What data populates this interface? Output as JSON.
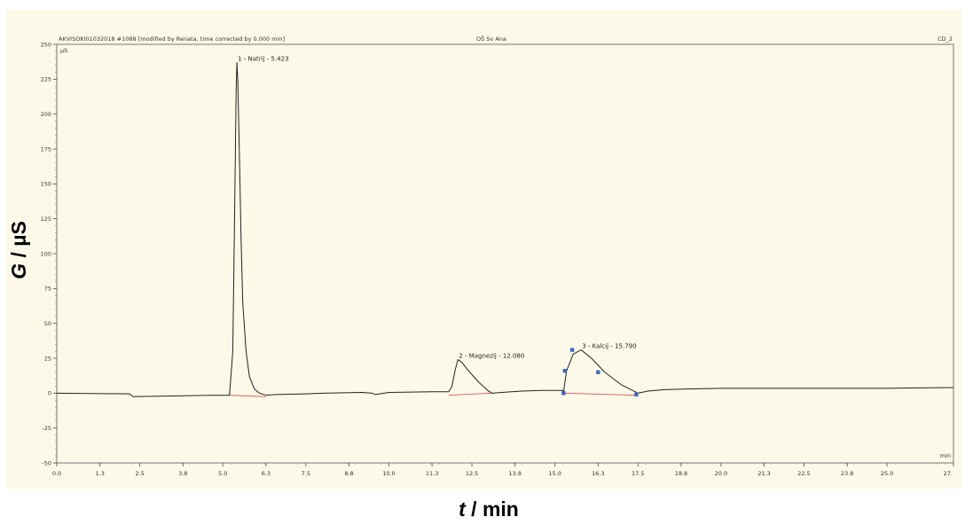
{
  "header": {
    "left": "AKVISOKI01032018 #1088 [modified by Renata, time corrected by 0.000 min]",
    "center": "OŠ Sv Ana",
    "right": "CD_2"
  },
  "unit_inner_y": "µS",
  "unit_inner_x": "min",
  "axis_title_y": {
    "italic": "G",
    "rest": " / µS"
  },
  "axis_title_x": {
    "italic": "t",
    "rest": " / min"
  },
  "colors": {
    "background": "#fdf9e8",
    "trace": "#222222",
    "baseline": "#e05050",
    "marker": "#3a67c6",
    "frame": "#555555"
  },
  "chart_data": {
    "type": "line",
    "xlim": [
      0.0,
      27.0
    ],
    "ylim": [
      -50,
      250
    ],
    "x_ticks": [
      0.0,
      1.3,
      2.5,
      3.8,
      5.0,
      6.3,
      7.5,
      8.8,
      10.0,
      11.3,
      12.5,
      13.8,
      15.0,
      16.3,
      17.5,
      18.8,
      20.0,
      21.3,
      22.5,
      23.8,
      25.0,
      27.0
    ],
    "x_tick_labels": [
      "0.0",
      "1.3",
      "2.5",
      "3.8",
      "5.0",
      "6.3",
      "7.5",
      "8.8",
      "10.0",
      "11.3",
      "12.5",
      "13.8",
      "15.0",
      "16.3",
      "17.5",
      "18.8",
      "20.0",
      "21.3",
      "22.5",
      "23.8",
      "25.0",
      "27."
    ],
    "y_ticks": [
      -50,
      -25,
      0,
      25,
      50,
      75,
      100,
      125,
      150,
      175,
      200,
      225,
      250
    ],
    "y_tick_labels": [
      "-50",
      "-25",
      "0",
      "25",
      "50",
      "75",
      "100",
      "125",
      "150",
      "175",
      "200",
      "225",
      "250"
    ],
    "xlabel": "t / min",
    "ylabel": "G / µS",
    "series": [
      {
        "points": [
          [
            0.0,
            0
          ],
          [
            2.2,
            -0.5
          ],
          [
            2.3,
            -2.5
          ],
          [
            3.5,
            -2.0
          ],
          [
            4.6,
            -1.5
          ],
          [
            5.2,
            -1.5
          ],
          [
            5.3,
            30
          ],
          [
            5.35,
            120
          ],
          [
            5.4,
            215
          ],
          [
            5.423,
            237
          ],
          [
            5.45,
            225
          ],
          [
            5.5,
            170
          ],
          [
            5.55,
            110
          ],
          [
            5.6,
            65
          ],
          [
            5.7,
            30
          ],
          [
            5.8,
            12
          ],
          [
            5.95,
            3
          ],
          [
            6.1,
            0
          ],
          [
            6.3,
            -1.5
          ],
          [
            6.6,
            -1.0
          ],
          [
            7.5,
            -0.5
          ],
          [
            8.0,
            0
          ],
          [
            9.2,
            0.5
          ],
          [
            9.5,
            0
          ],
          [
            9.6,
            -1
          ],
          [
            10.0,
            0.5
          ],
          [
            11.3,
            1
          ],
          [
            11.8,
            1
          ],
          [
            11.9,
            5
          ],
          [
            12.0,
            17
          ],
          [
            12.08,
            24
          ],
          [
            12.2,
            22
          ],
          [
            12.4,
            16
          ],
          [
            12.7,
            8
          ],
          [
            13.0,
            1.5
          ],
          [
            13.1,
            0
          ],
          [
            13.4,
            0.5
          ],
          [
            14.0,
            1.5
          ],
          [
            14.6,
            2
          ],
          [
            15.0,
            2
          ],
          [
            15.25,
            2
          ],
          [
            15.26,
            0.5
          ],
          [
            15.3,
            8
          ],
          [
            15.35,
            16
          ],
          [
            15.55,
            28
          ],
          [
            15.79,
            31
          ],
          [
            16.1,
            25
          ],
          [
            16.5,
            15
          ],
          [
            17.0,
            6
          ],
          [
            17.5,
            0
          ],
          [
            17.8,
            1.5
          ],
          [
            18.3,
            2.5
          ],
          [
            19.0,
            3
          ],
          [
            20.0,
            3.5
          ],
          [
            22.0,
            3.5
          ],
          [
            24.0,
            3.5
          ],
          [
            25.0,
            3.5
          ],
          [
            27.0,
            4
          ]
        ]
      }
    ],
    "baselines": [
      [
        [
          5.2,
          -1.5
        ],
        [
          6.3,
          -2.5
        ]
      ],
      [
        [
          11.8,
          -1.5
        ],
        [
          13.1,
          0
        ]
      ],
      [
        [
          15.26,
          0
        ],
        [
          17.45,
          -1.5
        ]
      ]
    ],
    "markers": [
      [
        15.26,
        0
      ],
      [
        15.3,
        16
      ],
      [
        15.52,
        31
      ],
      [
        16.3,
        15
      ],
      [
        17.45,
        -1
      ]
    ],
    "peaks": [
      {
        "label": "1 - Natrij - 5.423",
        "x": 5.423,
        "y": 237
      },
      {
        "label": "2 - Magnezij - 12.080",
        "x": 12.08,
        "y": 24
      },
      {
        "label": "3 - Kalcij - 15.790",
        "x": 15.79,
        "y": 31
      }
    ]
  }
}
